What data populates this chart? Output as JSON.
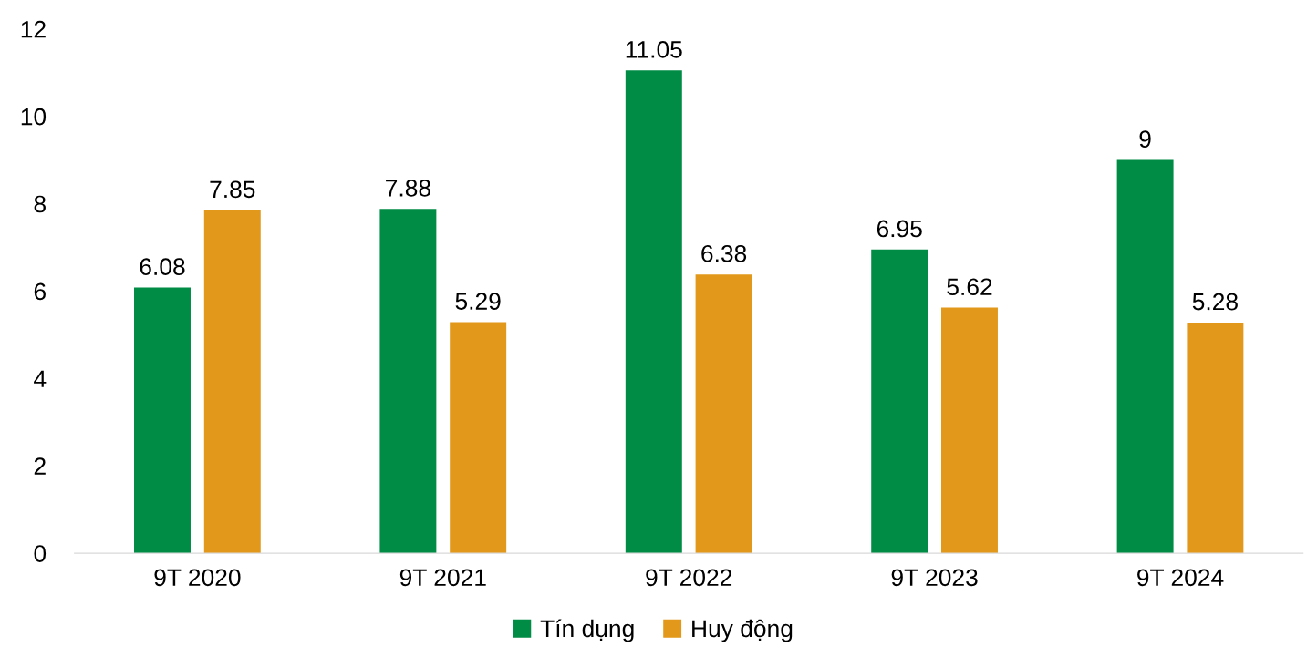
{
  "chart_data": {
    "type": "bar",
    "categories": [
      "9T 2020",
      "9T 2021",
      "9T 2022",
      "9T 2023",
      "9T 2024"
    ],
    "series": [
      {
        "name": "Tín dụng",
        "color": "#008c45",
        "values": [
          6.08,
          7.88,
          11.05,
          6.95,
          9
        ]
      },
      {
        "name": "Huy động",
        "color": "#e2981a",
        "values": [
          7.85,
          5.29,
          6.38,
          5.62,
          5.28
        ]
      }
    ],
    "ylim": [
      0,
      12
    ],
    "yticks": [
      0,
      2,
      4,
      6,
      8,
      10,
      12
    ],
    "grid": false,
    "legend": "bottom",
    "data_labels": true
  }
}
